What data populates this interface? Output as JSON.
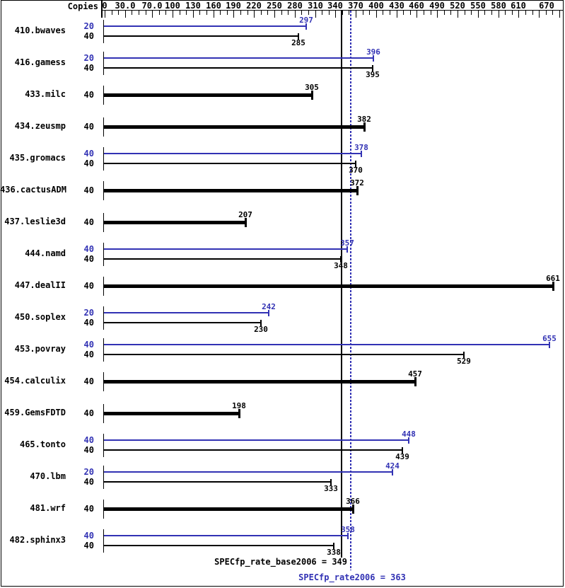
{
  "labels": {
    "copies_header": "Copies",
    "base_summary": "SPECfp_rate_base2006 = 349",
    "peak_summary": "SPECfp_rate2006 = 363"
  },
  "colors": {
    "peak_blue": "#3232b4",
    "base_black": "#000000",
    "background": "#ffffff"
  },
  "chart_data": {
    "type": "bar",
    "orientation": "horizontal",
    "title": "",
    "xlabel": "",
    "ylabel": "Copies",
    "xlim": [
      0,
      670
    ],
    "grid": false,
    "legend_position": "none",
    "x_tick_labels": [
      {
        "value": 0,
        "text": "0"
      },
      {
        "value": 30,
        "text": "30.0"
      },
      {
        "value": 70,
        "text": "70.0"
      },
      {
        "value": 100,
        "text": "100"
      },
      {
        "value": 130,
        "text": "130"
      },
      {
        "value": 160,
        "text": "160"
      },
      {
        "value": 190,
        "text": "190"
      },
      {
        "value": 220,
        "text": "220"
      },
      {
        "value": 250,
        "text": "250"
      },
      {
        "value": 280,
        "text": "280"
      },
      {
        "value": 310,
        "text": "310"
      },
      {
        "value": 340,
        "text": "340"
      },
      {
        "value": 370,
        "text": "370"
      },
      {
        "value": 400,
        "text": "400"
      },
      {
        "value": 430,
        "text": "430"
      },
      {
        "value": 460,
        "text": "460"
      },
      {
        "value": 490,
        "text": "490"
      },
      {
        "value": 520,
        "text": "520"
      },
      {
        "value": 550,
        "text": "550"
      },
      {
        "value": 580,
        "text": "580"
      },
      {
        "value": 610,
        "text": "610"
      },
      {
        "value": 670,
        "text": "670"
      }
    ],
    "unlabeled_major_ticks": [
      640
    ],
    "minor_tick_step": 10,
    "reference_lines": [
      {
        "name": "SPECfp_rate_base2006",
        "value": 349,
        "style": "solid",
        "color": "#000000"
      },
      {
        "name": "SPECfp_rate2006",
        "value": 363,
        "style": "dotted",
        "color": "#3232b4"
      }
    ],
    "benchmarks": [
      {
        "name": "410.bwaves",
        "bars": [
          {
            "series": "peak",
            "copies": 20,
            "value": 297
          },
          {
            "series": "base",
            "copies": 40,
            "value": 285
          }
        ]
      },
      {
        "name": "416.gamess",
        "bars": [
          {
            "series": "peak",
            "copies": 20,
            "value": 396
          },
          {
            "series": "base",
            "copies": 40,
            "value": 395
          }
        ]
      },
      {
        "name": "433.milc",
        "bars": [
          {
            "series": "basepeak",
            "copies": 40,
            "value": 305
          }
        ]
      },
      {
        "name": "434.zeusmp",
        "bars": [
          {
            "series": "basepeak",
            "copies": 40,
            "value": 382
          }
        ]
      },
      {
        "name": "435.gromacs",
        "bars": [
          {
            "series": "peak",
            "copies": 40,
            "value": 378
          },
          {
            "series": "base",
            "copies": 40,
            "value": 370
          }
        ]
      },
      {
        "name": "436.cactusADM",
        "bars": [
          {
            "series": "basepeak",
            "copies": 40,
            "value": 372
          }
        ]
      },
      {
        "name": "437.leslie3d",
        "bars": [
          {
            "series": "basepeak",
            "copies": 40,
            "value": 207
          }
        ]
      },
      {
        "name": "444.namd",
        "bars": [
          {
            "series": "peak",
            "copies": 40,
            "value": 357
          },
          {
            "series": "base",
            "copies": 40,
            "value": 348
          }
        ]
      },
      {
        "name": "447.dealII",
        "bars": [
          {
            "series": "basepeak",
            "copies": 40,
            "value": 661
          }
        ]
      },
      {
        "name": "450.soplex",
        "bars": [
          {
            "series": "peak",
            "copies": 20,
            "value": 242
          },
          {
            "series": "base",
            "copies": 40,
            "value": 230
          }
        ]
      },
      {
        "name": "453.povray",
        "bars": [
          {
            "series": "peak",
            "copies": 40,
            "value": 655
          },
          {
            "series": "base",
            "copies": 40,
            "value": 529
          }
        ]
      },
      {
        "name": "454.calculix",
        "bars": [
          {
            "series": "basepeak",
            "copies": 40,
            "value": 457
          }
        ]
      },
      {
        "name": "459.GemsFDTD",
        "bars": [
          {
            "series": "basepeak",
            "copies": 40,
            "value": 198
          }
        ]
      },
      {
        "name": "465.tonto",
        "bars": [
          {
            "series": "peak",
            "copies": 40,
            "value": 448
          },
          {
            "series": "base",
            "copies": 40,
            "value": 439
          }
        ]
      },
      {
        "name": "470.lbm",
        "bars": [
          {
            "series": "peak",
            "copies": 20,
            "value": 424
          },
          {
            "series": "base",
            "copies": 40,
            "value": 333
          }
        ]
      },
      {
        "name": "481.wrf",
        "bars": [
          {
            "series": "basepeak",
            "copies": 40,
            "value": 366
          }
        ]
      },
      {
        "name": "482.sphinx3",
        "bars": [
          {
            "series": "peak",
            "copies": 40,
            "value": 358
          },
          {
            "series": "base",
            "copies": 40,
            "value": 338
          }
        ]
      }
    ]
  }
}
